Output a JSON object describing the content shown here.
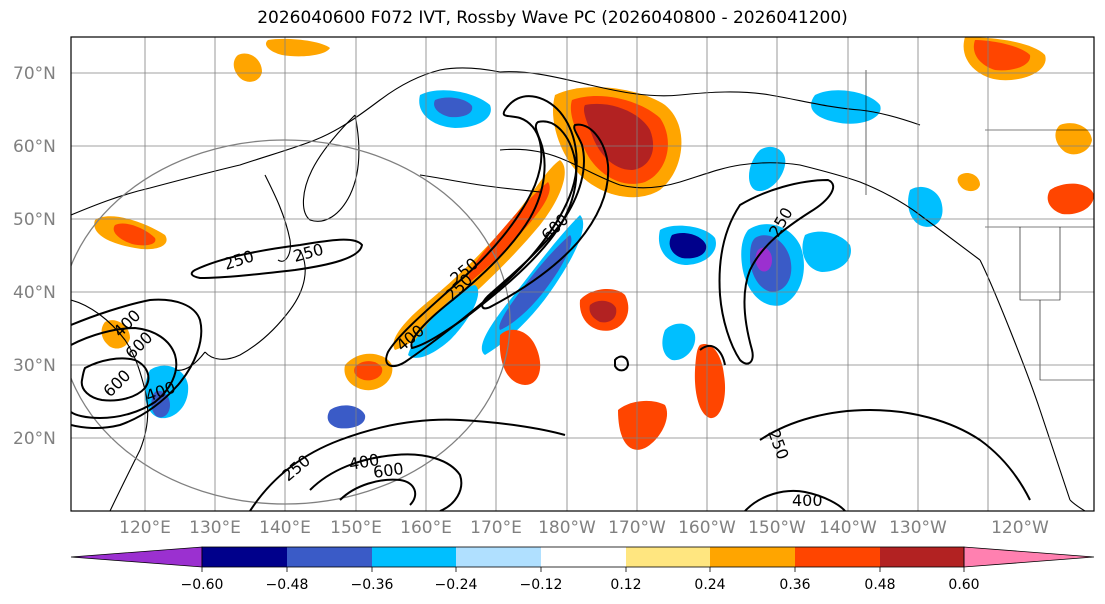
{
  "title": "2026040600 F072 IVT, Rossby Wave PC (2026040800 - 2026041200)",
  "lat_labels": [
    "70°N",
    "60°N",
    "50°N",
    "40°N",
    "30°N",
    "20°N"
  ],
  "lon_labels": [
    "120°E",
    "130°E",
    "140°E",
    "150°E",
    "160°E",
    "170°E",
    "180°W",
    "170°W",
    "160°W",
    "150°W",
    "140°W",
    "130°W",
    "120°W"
  ],
  "colorbar": {
    "ticks": [
      "−0.60",
      "−0.48",
      "−0.36",
      "−0.24",
      "−0.12",
      "0.12",
      "0.24",
      "0.36",
      "0.48",
      "0.60"
    ],
    "colors": [
      "#9b30d0",
      "#00008b",
      "#3a5bc7",
      "#00bfff",
      "#b0e0ff",
      "#ffffff",
      "#ffe680",
      "#ffa500",
      "#ff4500",
      "#b22222",
      "#ff80b0"
    ]
  },
  "contour_labels": {
    "c1": "250",
    "c2": "250",
    "c3": "400",
    "c4": "600",
    "c5": "250",
    "c6": "250",
    "c7": "600",
    "c8": "400",
    "c9": "250",
    "c10": "400",
    "c11": "600",
    "c12": "250",
    "c13": "400",
    "c14": "250",
    "c15": "400",
    "c16": "600"
  }
}
